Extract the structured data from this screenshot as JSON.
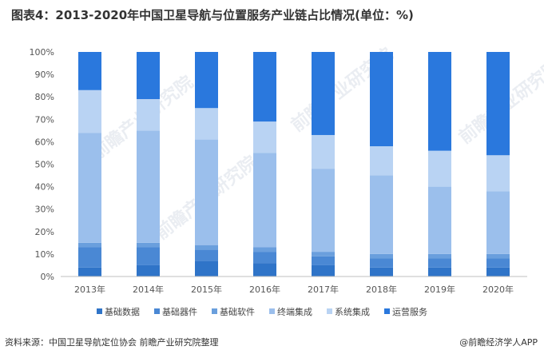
{
  "title": "图表4：2013-2020年中国卫星导航与位置服务产业链占比情况(单位：%)",
  "source": "资料来源：中国卫星导航定位协会 前瞻产业研究院整理",
  "brand": "@前瞻经济学人APP",
  "watermark": "前瞻产业研究院",
  "chart_data": {
    "type": "bar",
    "stacked": true,
    "categories": [
      "2013年",
      "2014年",
      "2015年",
      "2016年",
      "2017年",
      "2018年",
      "2019年",
      "2020年"
    ],
    "y_ticks": [
      "0%",
      "10%",
      "20%",
      "30%",
      "40%",
      "50%",
      "60%",
      "70%",
      "80%",
      "90%",
      "100%"
    ],
    "ylim": [
      0,
      100
    ],
    "legend_position": "bottom",
    "series": [
      {
        "name": "基础数据",
        "color": "#2f74c8",
        "values": [
          4,
          5,
          7,
          6,
          5,
          4,
          4,
          4
        ]
      },
      {
        "name": "基础器件",
        "color": "#4a88d4",
        "values": [
          9,
          8,
          5,
          5,
          4,
          4,
          4,
          4
        ]
      },
      {
        "name": "基础软件",
        "color": "#6a9fdd",
        "values": [
          2,
          2,
          2,
          2,
          2,
          2,
          2,
          2
        ]
      },
      {
        "name": "终端集成",
        "color": "#9bbfec",
        "values": [
          49,
          50,
          47,
          42,
          37,
          35,
          30,
          28
        ]
      },
      {
        "name": "系统集成",
        "color": "#b9d3f3",
        "values": [
          19,
          14,
          14,
          14,
          15,
          13,
          16,
          16
        ]
      },
      {
        "name": "运营服务",
        "color": "#2a78dd",
        "values": [
          17,
          21,
          25,
          31,
          37,
          42,
          44,
          46
        ]
      }
    ]
  }
}
